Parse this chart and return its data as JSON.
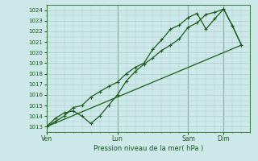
{
  "xlabel": "Pression niveau de la mer( hPa )",
  "ylim": [
    1012.5,
    1024.5
  ],
  "yticks": [
    1013,
    1014,
    1015,
    1016,
    1017,
    1018,
    1019,
    1020,
    1021,
    1022,
    1023,
    1024
  ],
  "day_labels": [
    "Ven",
    "Lun",
    "Sam",
    "Dim"
  ],
  "day_positions": [
    0,
    4,
    8,
    10
  ],
  "xlim": [
    0,
    11.5
  ],
  "bg_color": "#cce8e8",
  "grid_color": "#aacccc",
  "line_color": "#1a5c1a",
  "total_days": 11.5,
  "line1_x": [
    0,
    0.5,
    1.0,
    1.5,
    2.0,
    2.5,
    3.0,
    3.5,
    4.0,
    4.5,
    5.0,
    5.5,
    6.0,
    6.5,
    7.0,
    7.5,
    8.0,
    8.5,
    9.0,
    9.5,
    10.0,
    10.5,
    11.0
  ],
  "line1_y": [
    1013.0,
    1013.8,
    1014.3,
    1014.5,
    1014.0,
    1013.3,
    1014.0,
    1015.0,
    1016.0,
    1017.3,
    1018.2,
    1018.9,
    1019.5,
    1020.2,
    1020.7,
    1021.3,
    1022.4,
    1022.8,
    1023.6,
    1023.8,
    1024.1,
    1022.5,
    1020.7
  ],
  "line2_x": [
    0,
    0.5,
    1.0,
    1.5,
    2.0,
    2.5,
    3.0,
    3.5,
    4.0,
    4.5,
    5.0,
    5.5,
    6.0,
    6.5,
    7.0,
    7.5,
    8.0,
    8.5,
    9.0,
    9.5,
    10.0,
    10.5,
    11.0
  ],
  "line2_y": [
    1013.0,
    1013.5,
    1014.0,
    1014.8,
    1015.0,
    1015.8,
    1016.3,
    1016.8,
    1017.2,
    1018.0,
    1018.6,
    1019.0,
    1020.3,
    1021.2,
    1022.2,
    1022.6,
    1023.3,
    1023.7,
    1022.2,
    1023.2,
    1024.1,
    1022.5,
    1020.7
  ],
  "line3_x": [
    0,
    11.0
  ],
  "line3_y": [
    1013.0,
    1020.7
  ]
}
